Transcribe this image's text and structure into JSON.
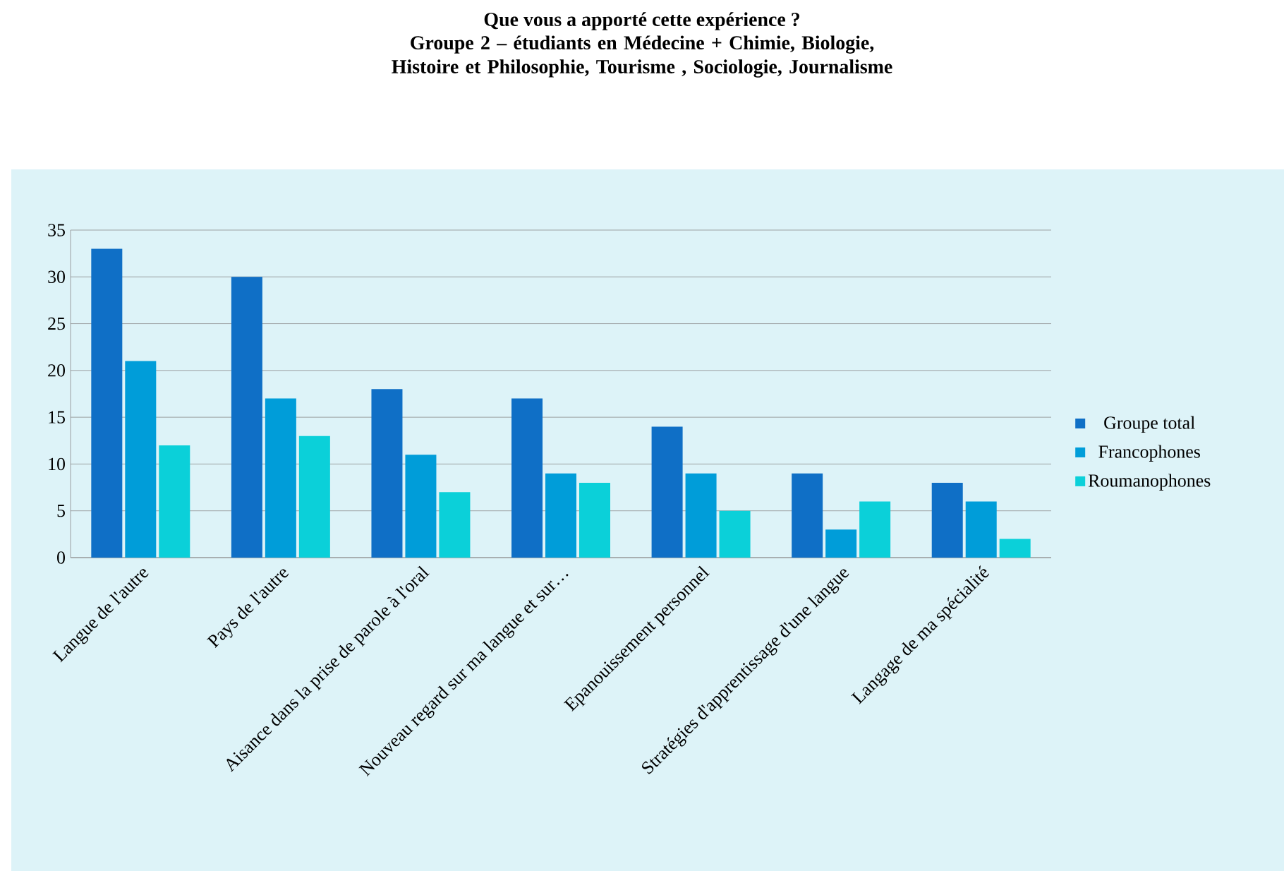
{
  "chart_data": {
    "type": "bar",
    "title": "Que vous a apporté cette expérience ?",
    "subtitle": "Groupe 2 – étudiants en Médecine + Chimie,  Biologie, Histoire et Philosophie, Tourisme , Sociologie, Journalisme",
    "categories": [
      "Langue de l'autre",
      "Pays de l'autre",
      "Aisance dans la prise de parole à l'oral",
      "Nouveau regard sur ma langue et sur…",
      "Epanouissement personnel",
      "Stratégies d'apprentissage d'une langue",
      "Langage de ma spécialité"
    ],
    "series": [
      {
        "name": "Groupe total",
        "color": "#0f6fc6",
        "values": [
          33,
          30,
          18,
          17,
          14,
          9,
          8
        ]
      },
      {
        "name": "Francophones",
        "color": "#009dd9",
        "values": [
          21,
          17,
          11,
          9,
          9,
          3,
          6
        ]
      },
      {
        "name": "Roumanophones",
        "color": "#0bd0d9",
        "values": [
          12,
          13,
          7,
          8,
          5,
          6,
          2
        ]
      }
    ],
    "ylim": [
      0,
      35
    ],
    "yticks": [
      0,
      5,
      10,
      15,
      20,
      25,
      30,
      35
    ],
    "grid": "y",
    "legend": "right"
  }
}
